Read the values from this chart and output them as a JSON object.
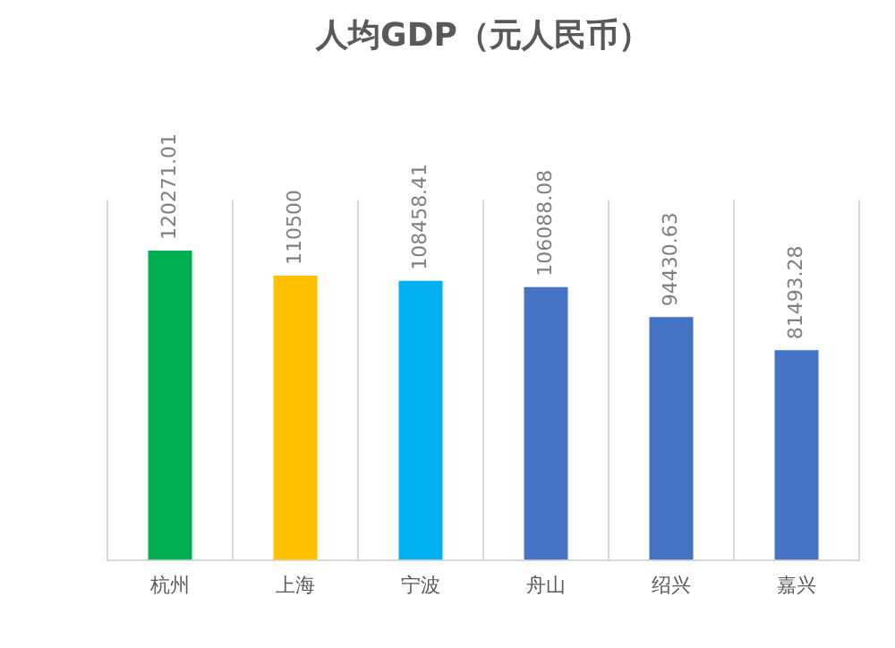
{
  "chart_data": {
    "type": "bar",
    "title": "人均GDP（元人民币）",
    "categories": [
      "杭州",
      "上海",
      "宁波",
      "舟山",
      "绍兴",
      "嘉兴"
    ],
    "values": [
      120271.01,
      110500,
      108458.41,
      106088.08,
      94430.63,
      81493.28
    ],
    "value_labels": [
      "120271.01",
      "110500",
      "108458.41",
      "106088.08",
      "94430.63",
      "81493.28"
    ],
    "colors": [
      "#00b050",
      "#ffc000",
      "#00b0f0",
      "#4472c4",
      "#4472c4",
      "#4472c4"
    ],
    "grid": "x",
    "legend": false
  }
}
